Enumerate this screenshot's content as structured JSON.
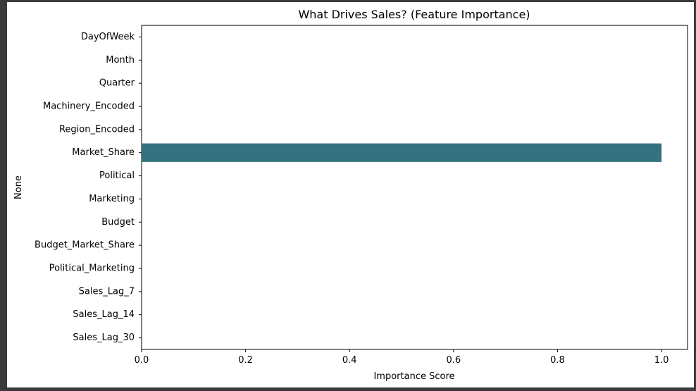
{
  "chart_data": {
    "type": "bar",
    "orientation": "horizontal",
    "title": "What Drives Sales? (Feature Importance)",
    "xlabel": "Importance Score",
    "ylabel": "None",
    "categories": [
      "DayOfWeek",
      "Month",
      "Quarter",
      "Machinery_Encoded",
      "Region_Encoded",
      "Market_Share",
      "Political",
      "Marketing",
      "Budget",
      "Budget_Market_Share",
      "Political_Marketing",
      "Sales_Lag_7",
      "Sales_Lag_14",
      "Sales_Lag_30"
    ],
    "values": [
      0,
      0,
      0,
      0,
      0,
      1.0,
      0,
      0,
      0,
      0,
      0,
      0,
      0,
      0
    ],
    "xlim": [
      0,
      1.05
    ],
    "xticks": [
      "0.0",
      "0.2",
      "0.4",
      "0.6",
      "0.8",
      "1.0"
    ],
    "bar_color": "#367180",
    "grid": false,
    "legend": "none"
  }
}
